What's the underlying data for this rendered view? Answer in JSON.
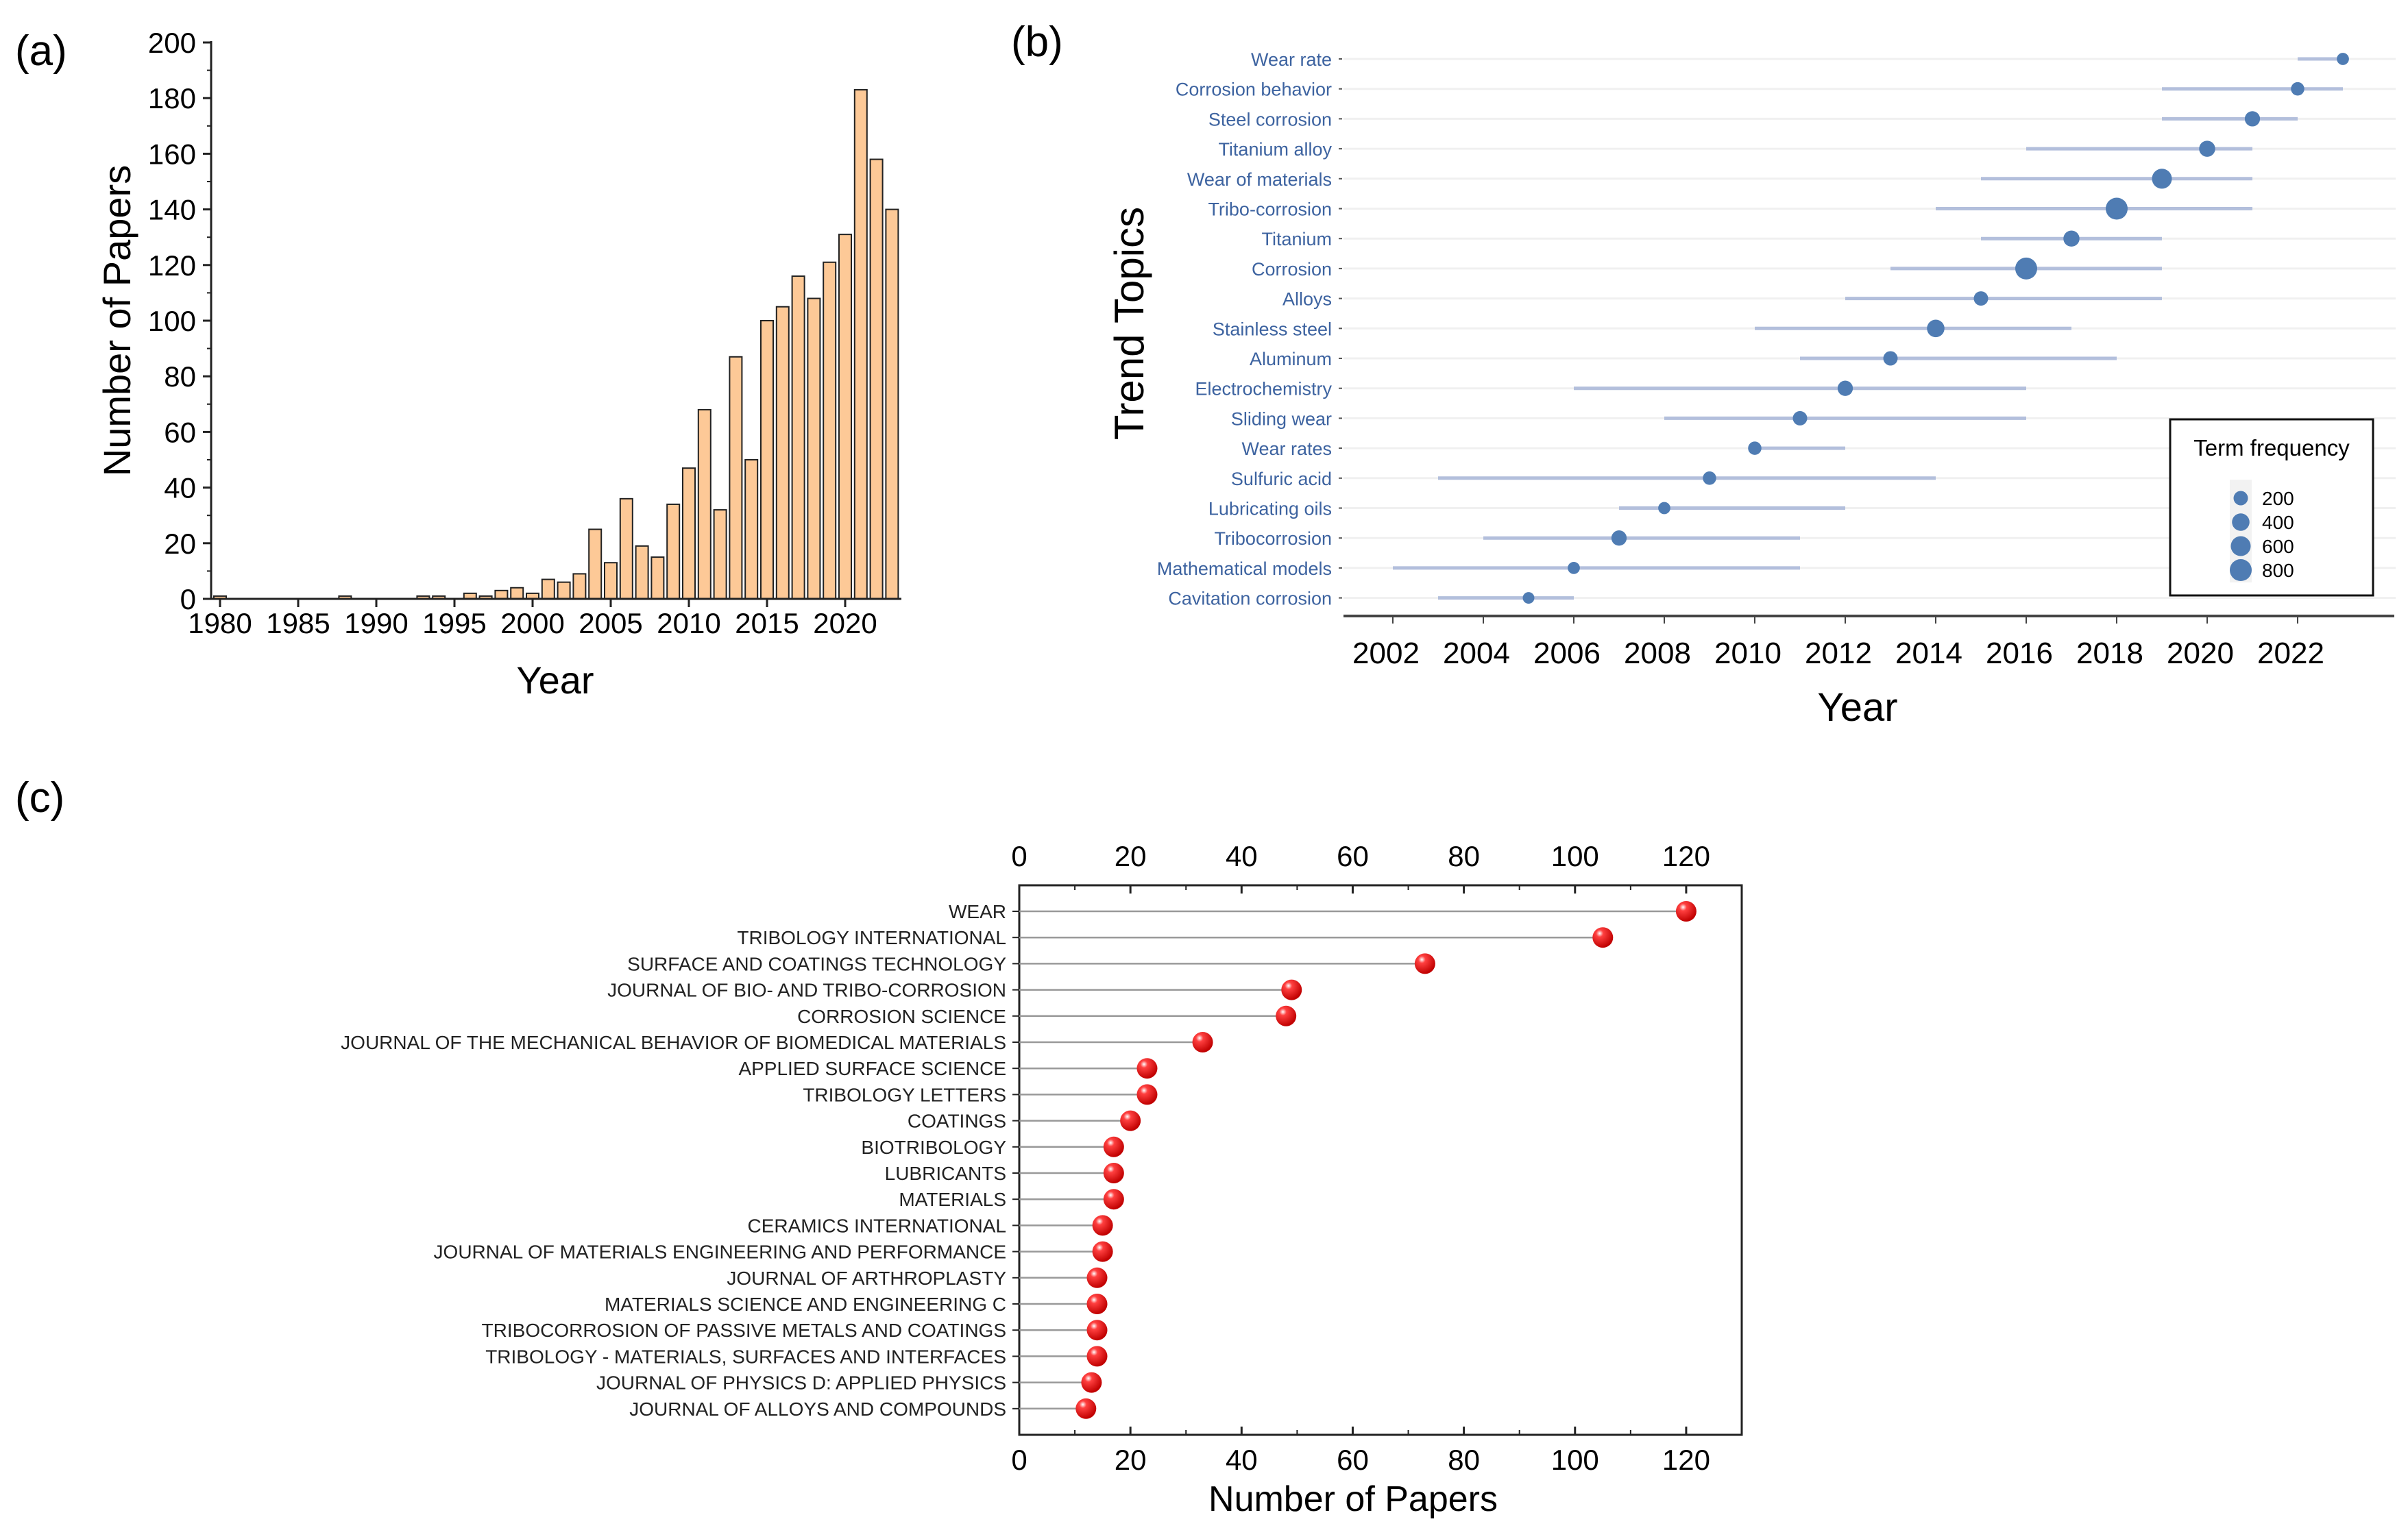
{
  "chart_data": [
    {
      "panel": "(a)",
      "type": "bar",
      "xlabel": "Year",
      "ylabel": "Number of Papers",
      "ylim": [
        0,
        200
      ],
      "yticks": [
        0,
        20,
        40,
        60,
        80,
        100,
        120,
        140,
        160,
        180,
        200
      ],
      "xticks": [
        1980,
        1985,
        1990,
        1995,
        2000,
        2005,
        2010,
        2015,
        2020
      ],
      "categories": [
        1980,
        1981,
        1982,
        1983,
        1984,
        1985,
        1986,
        1987,
        1988,
        1989,
        1990,
        1991,
        1992,
        1993,
        1994,
        1995,
        1996,
        1997,
        1998,
        1999,
        2000,
        2001,
        2002,
        2003,
        2004,
        2005,
        2006,
        2007,
        2008,
        2009,
        2010,
        2011,
        2012,
        2013,
        2014,
        2015,
        2016,
        2017,
        2018,
        2019,
        2020,
        2021,
        2022,
        2023
      ],
      "values": [
        1,
        0,
        0,
        0,
        0,
        0,
        0,
        0,
        1,
        0,
        0,
        0,
        0,
        1,
        1,
        0,
        2,
        1,
        3,
        4,
        2,
        7,
        6,
        9,
        25,
        13,
        36,
        19,
        15,
        34,
        47,
        68,
        32,
        87,
        50,
        100,
        105,
        116,
        108,
        121,
        131,
        183,
        158,
        140
      ],
      "bar_color": "#fdc997"
    },
    {
      "panel": "(b)",
      "type": "scatter",
      "xlabel": "Year",
      "ylabel": "Trend Topics",
      "xlim": [
        2002,
        2023
      ],
      "xticks": [
        2002,
        2004,
        2006,
        2008,
        2010,
        2012,
        2014,
        2016,
        2018,
        2020,
        2022
      ],
      "legend_title": "Term frequency",
      "legend_entries": [
        200,
        400,
        600,
        800
      ],
      "legend_position": "bottom-right",
      "color": "#4f7cb3",
      "line_color": "#b3bfdc",
      "topics": [
        {
          "label": "Wear rate",
          "median": 2023,
          "start": 2022,
          "end": 2023,
          "freq": 100
        },
        {
          "label": "Corrosion behavior",
          "median": 2022,
          "start": 2019,
          "end": 2023,
          "freq": 150
        },
        {
          "label": "Steel corrosion",
          "median": 2021,
          "start": 2019,
          "end": 2022,
          "freq": 250
        },
        {
          "label": "Titanium alloy",
          "median": 2020,
          "start": 2016,
          "end": 2021,
          "freq": 300
        },
        {
          "label": "Wear of materials",
          "median": 2019,
          "start": 2015,
          "end": 2021,
          "freq": 600
        },
        {
          "label": "Tribo-corrosion",
          "median": 2018,
          "start": 2014,
          "end": 2021,
          "freq": 800
        },
        {
          "label": "Titanium",
          "median": 2017,
          "start": 2015,
          "end": 2019,
          "freq": 300
        },
        {
          "label": "Corrosion",
          "median": 2016,
          "start": 2013,
          "end": 2019,
          "freq": 800
        },
        {
          "label": "Alloys",
          "median": 2015,
          "start": 2012,
          "end": 2019,
          "freq": 200
        },
        {
          "label": "Stainless steel",
          "median": 2014,
          "start": 2010,
          "end": 2017,
          "freq": 400
        },
        {
          "label": "Aluminum",
          "median": 2013,
          "start": 2011,
          "end": 2018,
          "freq": 200
        },
        {
          "label": "Electrochemistry",
          "median": 2012,
          "start": 2006,
          "end": 2016,
          "freq": 250
        },
        {
          "label": "Sliding wear",
          "median": 2011,
          "start": 2008,
          "end": 2016,
          "freq": 200
        },
        {
          "label": "Wear rates",
          "median": 2010,
          "start": 2010,
          "end": 2012,
          "freq": 150
        },
        {
          "label": "Sulfuric acid",
          "median": 2009,
          "start": 2003,
          "end": 2014,
          "freq": 150
        },
        {
          "label": "Lubricating oils",
          "median": 2008,
          "start": 2007,
          "end": 2012,
          "freq": 100
        },
        {
          "label": "Tribocorrosion",
          "median": 2007,
          "start": 2004,
          "end": 2011,
          "freq": 250
        },
        {
          "label": "Mathematical models",
          "median": 2006,
          "start": 2002,
          "end": 2011,
          "freq": 100
        },
        {
          "label": "Cavitation corrosion",
          "median": 2005,
          "start": 2003,
          "end": 2006,
          "freq": 80
        }
      ]
    },
    {
      "panel": "(c)",
      "type": "lollipop",
      "xlabel": "Number of Papers",
      "xlim": [
        0,
        130
      ],
      "xticks": [
        0,
        20,
        40,
        60,
        80,
        100,
        120
      ],
      "color": "#ff0000",
      "categories": [
        "WEAR",
        "TRIBOLOGY INTERNATIONAL",
        "SURFACE AND COATINGS TECHNOLOGY",
        "JOURNAL OF BIO- AND TRIBO-CORROSION",
        "CORROSION SCIENCE",
        "JOURNAL OF THE MECHANICAL BEHAVIOR OF BIOMEDICAL MATERIALS",
        "APPLIED SURFACE SCIENCE",
        "TRIBOLOGY LETTERS",
        "COATINGS",
        "BIOTRIBOLOGY",
        "LUBRICANTS",
        "MATERIALS",
        "CERAMICS INTERNATIONAL",
        "JOURNAL OF MATERIALS ENGINEERING AND PERFORMANCE",
        "JOURNAL OF ARTHROPLASTY",
        "MATERIALS SCIENCE AND ENGINEERING C",
        "TRIBOCORROSION OF PASSIVE METALS AND COATINGS",
        "TRIBOLOGY - MATERIALS, SURFACES AND INTERFACES",
        "JOURNAL OF PHYSICS D: APPLIED PHYSICS",
        "JOURNAL OF ALLOYS AND COMPOUNDS"
      ],
      "values": [
        120,
        105,
        73,
        49,
        48,
        33,
        23,
        23,
        20,
        17,
        17,
        17,
        15,
        15,
        14,
        14,
        14,
        14,
        13,
        12
      ]
    }
  ]
}
